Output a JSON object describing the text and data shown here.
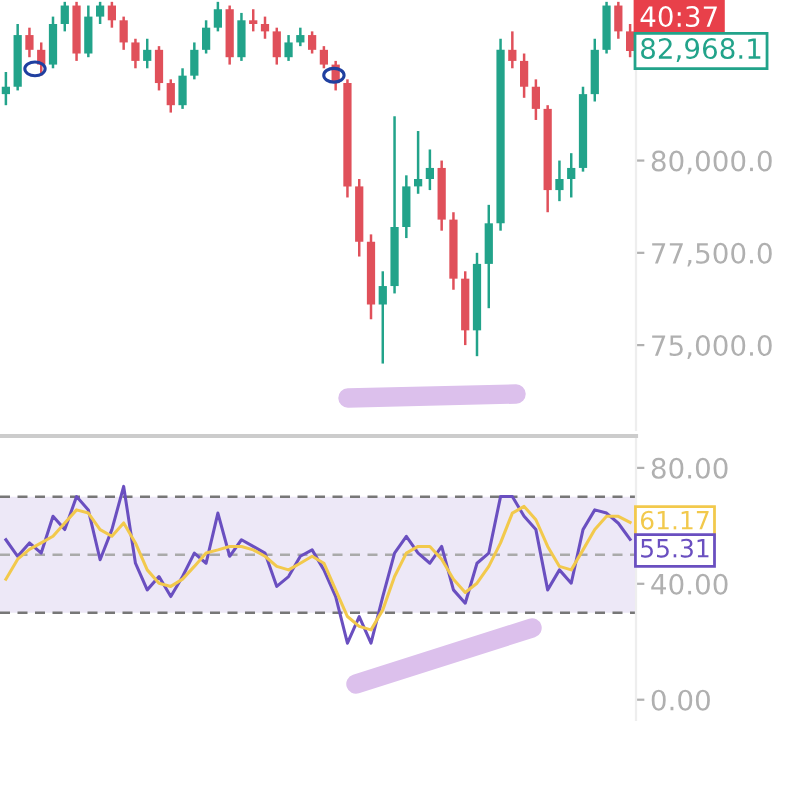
{
  "chart_data": [
    {
      "type": "candlestick",
      "categories": [
        null,
        null,
        null,
        null,
        null,
        null,
        null,
        null,
        null,
        null,
        null,
        null,
        null,
        null,
        null,
        null,
        null,
        null,
        null,
        null,
        null,
        null,
        null,
        null,
        null,
        null,
        null,
        null,
        null,
        null,
        null,
        null,
        null,
        null,
        null,
        null,
        null,
        null,
        null,
        null,
        null,
        null,
        null,
        null,
        null,
        null,
        null,
        null,
        null,
        null,
        null,
        null,
        null,
        null
      ],
      "ohlc": [
        [
          81800,
          82400,
          81500,
          82000
        ],
        [
          82000,
          83700,
          81900,
          83400
        ],
        [
          83400,
          83600,
          82800,
          83000
        ],
        [
          83000,
          83200,
          82300,
          82600
        ],
        [
          82600,
          83900,
          82500,
          83700
        ],
        [
          83700,
          84300,
          83500,
          84200
        ],
        [
          84200,
          84300,
          82700,
          82900
        ],
        [
          82900,
          84200,
          82800,
          83900
        ],
        [
          83900,
          84300,
          83700,
          84200
        ],
        [
          84200,
          84300,
          83600,
          83800
        ],
        [
          83800,
          83900,
          83000,
          83200
        ],
        [
          83200,
          83300,
          82500,
          82700
        ],
        [
          82700,
          83300,
          82500,
          83000
        ],
        [
          83000,
          83100,
          81900,
          82100
        ],
        [
          82100,
          82200,
          81300,
          81500
        ],
        [
          81500,
          82500,
          81400,
          82300
        ],
        [
          82300,
          83200,
          82200,
          83000
        ],
        [
          83000,
          83800,
          82900,
          83600
        ],
        [
          83600,
          84300,
          83500,
          84100
        ],
        [
          84100,
          84200,
          82600,
          82800
        ],
        [
          82800,
          84000,
          82700,
          83800
        ],
        [
          83800,
          84100,
          83500,
          83700
        ],
        [
          83700,
          83900,
          83300,
          83500
        ],
        [
          83500,
          83600,
          82600,
          82800
        ],
        [
          82800,
          83400,
          82700,
          83200
        ],
        [
          83200,
          83600,
          83100,
          83400
        ],
        [
          83400,
          83500,
          82900,
          83000
        ],
        [
          83000,
          83100,
          82500,
          82600
        ],
        [
          82600,
          82700,
          81900,
          82100
        ],
        [
          82100,
          82200,
          79000,
          79300
        ],
        [
          79300,
          79500,
          77400,
          77800
        ],
        [
          77800,
          78000,
          75700,
          76100
        ],
        [
          76100,
          77000,
          74500,
          76600
        ],
        [
          76600,
          81200,
          76400,
          78200
        ],
        [
          78200,
          79600,
          77900,
          79300
        ],
        [
          79300,
          80800,
          79100,
          79500
        ],
        [
          79500,
          80300,
          79200,
          79800
        ],
        [
          79800,
          80000,
          78100,
          78400
        ],
        [
          78400,
          78600,
          76500,
          76800
        ],
        [
          76800,
          77000,
          75000,
          75400
        ],
        [
          75400,
          77500,
          74700,
          77200
        ],
        [
          77200,
          78800,
          76000,
          78300
        ],
        [
          78300,
          83300,
          78100,
          83000
        ],
        [
          83000,
          83500,
          82500,
          82700
        ],
        [
          82700,
          82900,
          81700,
          82000
        ],
        [
          82000,
          82200,
          81100,
          81400
        ],
        [
          81400,
          81500,
          78600,
          79200
        ],
        [
          79200,
          80000,
          78900,
          79500
        ],
        [
          79500,
          80200,
          79000,
          79800
        ],
        [
          79800,
          82000,
          79700,
          81800
        ],
        [
          81800,
          83300,
          81600,
          83000
        ],
        [
          83000,
          84300,
          82900,
          84200
        ],
        [
          84200,
          84300,
          83300,
          83500
        ],
        [
          83500,
          83700,
          82800,
          82968.1
        ]
      ],
      "colors": [
        "#22a38a",
        "#22a38a",
        "#e0505a",
        "#e0505a",
        "#22a38a",
        "#22a38a",
        "#e0505a",
        "#22a38a",
        "#22a38a",
        "#e0505a",
        "#e0505a",
        "#e0505a",
        "#22a38a",
        "#e0505a",
        "#e0505a",
        "#22a38a",
        "#22a38a",
        "#22a38a",
        "#22a38a",
        "#e0505a",
        "#22a38a",
        "#e0505a",
        "#e0505a",
        "#e0505a",
        "#22a38a",
        "#22a38a",
        "#e0505a",
        "#e0505a",
        "#e0505a",
        "#e0505a",
        "#e0505a",
        "#e0505a",
        "#22a38a",
        "#22a38a",
        "#22a38a",
        "#22a38a",
        "#22a38a",
        "#e0505a",
        "#e0505a",
        "#e0505a",
        "#22a38a",
        "#22a38a",
        "#22a38a",
        "#e0505a",
        "#e0505a",
        "#e0505a",
        "#e0505a",
        "#22a38a",
        "#22a38a",
        "#22a38a",
        "#22a38a",
        "#22a38a",
        "#e0505a",
        "#e0505a"
      ],
      "ylim": [
        72700,
        84350
      ],
      "yticks": [
        {
          "value": 75000,
          "label": "75,000.0"
        },
        {
          "value": 77500,
          "label": "77,500.0"
        },
        {
          "value": 80000,
          "label": "80,000.0"
        }
      ],
      "tick_labels": "y",
      "grid": false,
      "annotations": [
        "40:37",
        "82,968.1"
      ]
    },
    {
      "type": "line",
      "categories": [
        null,
        null,
        null,
        null,
        null,
        null,
        null,
        null,
        null,
        null,
        null,
        null,
        null,
        null,
        null,
        null,
        null,
        null,
        null,
        null,
        null,
        null,
        null,
        null,
        null,
        null,
        null,
        null,
        null,
        null,
        null,
        null,
        null,
        null,
        null,
        null,
        null,
        null,
        null,
        null,
        null,
        null,
        null,
        null,
        null,
        null,
        null,
        null,
        null,
        null,
        null,
        null,
        null,
        null
      ],
      "series": [
        {
          "color": "#6a4fc0",
          "values": [
            55.2,
            49.5,
            54.1,
            50.6,
            63.3,
            58.7,
            70.1,
            65.5,
            48.3,
            58.7,
            73.6,
            47.1,
            37.9,
            42.5,
            35.6,
            42.5,
            50.6,
            47.1,
            64.4,
            49.5,
            55.2,
            52.9,
            50.6,
            39.1,
            42.5,
            49.5,
            51.7,
            44.8,
            35.6,
            19.5,
            28.7,
            19.5,
            35.6,
            50.6,
            56.4,
            50.6,
            47.1,
            52.9,
            37.9,
            33.3,
            47.1,
            50.6,
            70.1,
            70.1,
            63.3,
            58.7,
            37.9,
            44.8,
            40.2,
            58.7,
            65.5,
            64.4,
            60.9,
            55.31
          ]
        },
        {
          "color": "#f2c94c",
          "values": [
            41.6,
            48.5,
            51.9,
            54.1,
            56.4,
            61,
            65.5,
            64.4,
            58.7,
            56.4,
            61,
            54.1,
            44.8,
            40.2,
            39.1,
            41.6,
            46,
            50.6,
            51.7,
            52.9,
            52.9,
            51.7,
            49.5,
            46,
            44.8,
            47.1,
            49.5,
            47.1,
            37.9,
            28.7,
            25.3,
            24.1,
            31,
            42.5,
            50.6,
            52.9,
            52.9,
            48.5,
            41.6,
            37,
            40.2,
            46,
            54.1,
            64.4,
            66.7,
            62.1,
            52.9,
            46,
            44.8,
            51.7,
            58.7,
            63.3,
            63.3,
            61.17
          ]
        }
      ],
      "ylim": [
        -7,
        91
      ],
      "yticks": [
        {
          "value": 80,
          "label": "80.00"
        },
        {
          "value": 40,
          "label": "40.00"
        },
        {
          "value": 0,
          "label": "0.00"
        }
      ],
      "tick_labels": "y",
      "grid": false,
      "bands": [
        {
          "axis": "y",
          "from": 30,
          "to": 70,
          "color": "#ede8f7"
        }
      ],
      "ref_lines": [
        {
          "axis": "y",
          "value": 70,
          "color": "#777777",
          "line_style": "dashed"
        },
        {
          "axis": "y",
          "value": 50,
          "color": "#aaaaaa",
          "line_style": "dashed"
        },
        {
          "axis": "y",
          "value": 30,
          "color": "#777777",
          "line_style": "dashed"
        }
      ],
      "annotations": [
        "61.17",
        "55.31"
      ]
    }
  ]
}
